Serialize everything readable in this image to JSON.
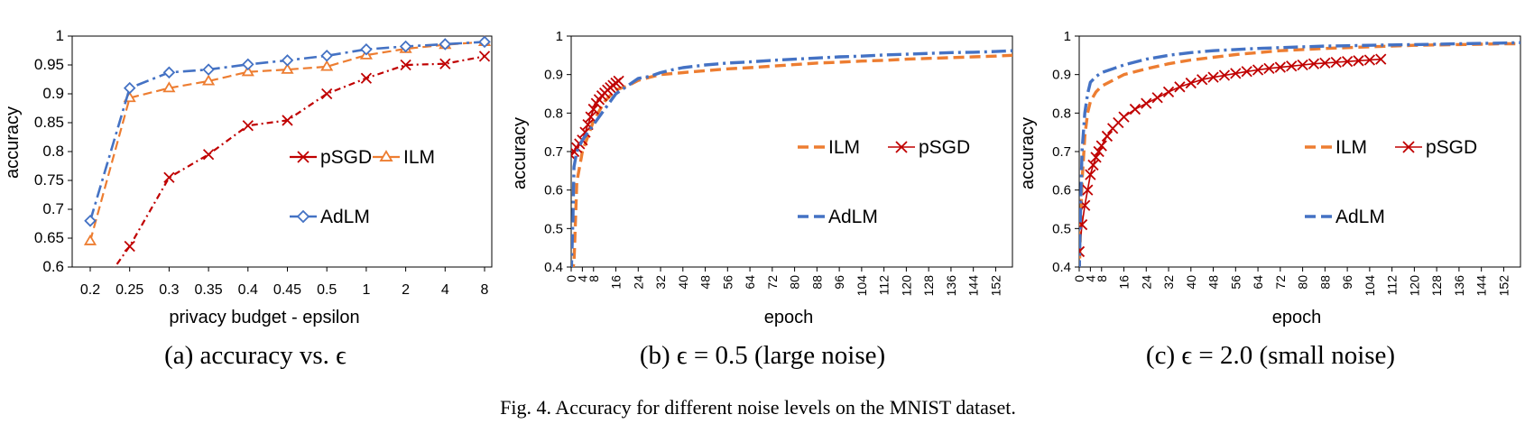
{
  "figure": {
    "caption": "Fig. 4.  Accuracy for different noise levels on the MNIST dataset."
  },
  "colors": {
    "ILM": "#ED7D31",
    "pSGD": "#C00000",
    "AdLM": "#4472C4"
  },
  "chart_data": [
    {
      "type": "line",
      "subcaption": "(a) accuracy vs. ϵ",
      "xlabel": "privacy budget - epsilon",
      "ylabel": "accuracy",
      "categories": [
        "0.2",
        "0.25",
        "0.3",
        "0.35",
        "0.4",
        "0.45",
        "0.5",
        "1",
        "2",
        "4",
        "8"
      ],
      "ylim": [
        0.6,
        1.0
      ],
      "yticks": [
        0.6,
        0.65,
        0.7,
        0.75,
        0.8,
        0.85,
        0.9,
        0.95,
        1
      ],
      "ytick_labels": [
        "0.6",
        "0.65",
        "0.7",
        "0.75",
        "0.8",
        "0.85",
        "0.9",
        "0.95",
        "1"
      ],
      "grid": false,
      "legend": "inside-right",
      "series": [
        {
          "name": "ILM",
          "marker": "triangle",
          "values": [
            0.645,
            0.893,
            0.91,
            0.922,
            0.938,
            0.942,
            0.947,
            0.967,
            0.978,
            0.985,
            0.99
          ]
        },
        {
          "name": "pSGD",
          "marker": "x",
          "values": [
            0.54,
            0.636,
            0.755,
            0.795,
            0.845,
            0.854,
            0.9,
            0.927,
            0.95,
            0.952,
            0.965
          ]
        },
        {
          "name": "AdLM",
          "marker": "diamond",
          "values": [
            0.68,
            0.91,
            0.937,
            0.942,
            0.951,
            0.958,
            0.966,
            0.977,
            0.982,
            0.986,
            0.99
          ]
        }
      ]
    },
    {
      "type": "line",
      "subcaption": "(b) ϵ = 0.5 (large noise)",
      "xlabel": "epoch",
      "ylabel": "accuracy",
      "xlim": [
        0,
        158
      ],
      "xticks": [
        0,
        4,
        8,
        16,
        24,
        32,
        40,
        48,
        56,
        64,
        72,
        80,
        88,
        96,
        104,
        112,
        120,
        128,
        136,
        144,
        152
      ],
      "ylim": [
        0.4,
        1.0
      ],
      "yticks": [
        0.4,
        0.5,
        0.6,
        0.7,
        0.8,
        0.9,
        1
      ],
      "ytick_labels": [
        "0.4",
        "0.5",
        "0.6",
        "0.7",
        "0.8",
        "0.9",
        "1"
      ],
      "grid": false,
      "legend": "inside-right",
      "series": [
        {
          "name": "ILM",
          "marker": "none",
          "x": [
            0,
            1,
            2,
            4,
            8,
            12,
            16,
            20,
            24,
            28,
            32,
            40,
            48,
            56,
            64,
            72,
            80,
            88,
            96,
            104,
            112,
            120,
            128,
            136,
            144,
            152,
            158
          ],
          "values": [
            0.38,
            0.41,
            0.62,
            0.7,
            0.78,
            0.83,
            0.86,
            0.87,
            0.885,
            0.893,
            0.9,
            0.905,
            0.91,
            0.915,
            0.918,
            0.922,
            0.926,
            0.93,
            0.932,
            0.935,
            0.937,
            0.94,
            0.942,
            0.944,
            0.946,
            0.948,
            0.95
          ]
        },
        {
          "name": "pSGD",
          "marker": "x",
          "x": [
            0,
            1,
            2,
            3,
            4,
            5,
            6,
            7,
            8,
            9,
            10,
            11,
            12,
            13,
            14,
            15,
            16,
            17
          ],
          "values": [
            0.69,
            0.7,
            0.71,
            0.72,
            0.73,
            0.75,
            0.77,
            0.79,
            0.81,
            0.825,
            0.835,
            0.845,
            0.852,
            0.86,
            0.866,
            0.872,
            0.878,
            0.883
          ]
        },
        {
          "name": "AdLM",
          "marker": "none",
          "x": [
            0,
            0.6,
            1,
            2,
            4,
            8,
            12,
            16,
            20,
            24,
            28,
            32,
            36,
            40,
            48,
            56,
            64,
            72,
            80,
            88,
            96,
            104,
            112,
            120,
            128,
            136,
            144,
            152,
            158
          ],
          "values": [
            0.38,
            0.52,
            0.66,
            0.7,
            0.73,
            0.77,
            0.81,
            0.85,
            0.87,
            0.89,
            0.895,
            0.905,
            0.912,
            0.918,
            0.925,
            0.93,
            0.933,
            0.937,
            0.94,
            0.943,
            0.946,
            0.948,
            0.951,
            0.953,
            0.955,
            0.957,
            0.958,
            0.96,
            0.962
          ]
        }
      ]
    },
    {
      "type": "line",
      "subcaption": "(c) ϵ = 2.0 (small noise)",
      "xlabel": "epoch",
      "ylabel": "accuracy",
      "xlim": [
        0,
        158
      ],
      "xticks": [
        0,
        4,
        8,
        16,
        24,
        32,
        40,
        48,
        56,
        64,
        72,
        80,
        88,
        96,
        104,
        112,
        120,
        128,
        136,
        144,
        152
      ],
      "ylim": [
        0.4,
        1.0
      ],
      "yticks": [
        0.4,
        0.5,
        0.6,
        0.7,
        0.8,
        0.9,
        1
      ],
      "ytick_labels": [
        "0.4",
        "0.5",
        "0.6",
        "0.7",
        "0.8",
        "0.9",
        "1"
      ],
      "grid": false,
      "legend": "inside-right",
      "series": [
        {
          "name": "ILM",
          "marker": "none",
          "x": [
            0,
            0.5,
            1,
            2,
            3,
            4,
            6,
            8,
            12,
            16,
            24,
            32,
            40,
            48,
            56,
            64,
            72,
            80,
            88,
            96,
            104,
            112,
            120,
            128,
            136,
            144,
            152,
            158
          ],
          "values": [
            0.38,
            0.5,
            0.62,
            0.74,
            0.8,
            0.83,
            0.855,
            0.87,
            0.885,
            0.9,
            0.915,
            0.928,
            0.938,
            0.945,
            0.952,
            0.957,
            0.962,
            0.965,
            0.968,
            0.97,
            0.972,
            0.974,
            0.976,
            0.977,
            0.978,
            0.979,
            0.98,
            0.98
          ]
        },
        {
          "name": "pSGD",
          "marker": "x",
          "x": [
            0,
            1,
            2,
            3,
            4,
            5,
            6,
            7,
            8,
            10,
            12,
            14,
            16,
            20,
            24,
            28,
            32,
            36,
            40,
            44,
            48,
            52,
            56,
            60,
            64,
            68,
            72,
            76,
            80,
            84,
            88,
            92,
            96,
            100,
            104,
            108
          ],
          "values": [
            0.44,
            0.51,
            0.56,
            0.6,
            0.64,
            0.665,
            0.685,
            0.7,
            0.715,
            0.74,
            0.76,
            0.775,
            0.79,
            0.81,
            0.825,
            0.84,
            0.855,
            0.868,
            0.878,
            0.887,
            0.893,
            0.898,
            0.903,
            0.908,
            0.912,
            0.916,
            0.919,
            0.922,
            0.925,
            0.928,
            0.93,
            0.932,
            0.934,
            0.936,
            0.938,
            0.94
          ]
        },
        {
          "name": "AdLM",
          "marker": "none",
          "x": [
            0,
            0.5,
            1,
            2,
            3,
            4,
            6,
            8,
            12,
            16,
            24,
            32,
            40,
            48,
            56,
            64,
            72,
            80,
            88,
            96,
            104,
            112,
            120,
            128,
            136,
            144,
            152,
            158
          ],
          "values": [
            0.38,
            0.55,
            0.7,
            0.8,
            0.85,
            0.88,
            0.895,
            0.905,
            0.915,
            0.925,
            0.94,
            0.95,
            0.957,
            0.962,
            0.965,
            0.968,
            0.97,
            0.972,
            0.974,
            0.975,
            0.976,
            0.977,
            0.978,
            0.979,
            0.98,
            0.981,
            0.982,
            0.983
          ]
        }
      ]
    }
  ]
}
